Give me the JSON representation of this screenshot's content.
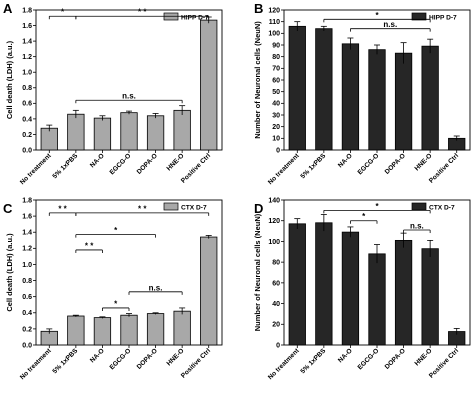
{
  "chart_data": [
    {
      "panel": "A",
      "type": "bar",
      "ylabel": "Cell death (LDH) (a.u.)",
      "legend": "HIPP D-7",
      "bar_color": "#a8a8a8",
      "ylim": [
        0,
        1.8
      ],
      "yticks": [
        "0.0",
        "0.2",
        "0.4",
        "0.6",
        "0.8",
        "1.0",
        "1.2",
        "1.4",
        "1.6",
        "1.8"
      ],
      "categories": [
        "No treatment",
        "5% 1xPBS",
        "NA-O",
        "EGCG-O",
        "DOPA-O",
        "HNE-O",
        "Positive Ctrl"
      ],
      "values": [
        0.28,
        0.46,
        0.41,
        0.48,
        0.44,
        0.51,
        1.67
      ],
      "errors": [
        0.04,
        0.05,
        0.03,
        0.02,
        0.03,
        0.06,
        0.04
      ],
      "annotations": [
        {
          "text": "*",
          "from": 0,
          "to": 1,
          "y": 1.72
        },
        {
          "text": "* *",
          "from": 1,
          "to": 6,
          "y": 1.72
        },
        {
          "text": "n.s.",
          "from": 1,
          "to": 5,
          "y": 0.64
        }
      ]
    },
    {
      "panel": "B",
      "type": "bar",
      "ylabel": "Number of Neuronal cells (NeuN)",
      "legend": "HIPP D-7",
      "bar_color": "#262626",
      "ylim": [
        0,
        120
      ],
      "yticks": [
        "0",
        "10",
        "20",
        "30",
        "40",
        "50",
        "60",
        "70",
        "80",
        "90",
        "100",
        "110",
        "120"
      ],
      "categories": [
        "No treatment",
        "5% 1xPBS",
        "NA-O",
        "EGCG-O",
        "DOPA-O",
        "HNE-O",
        "Positive Ctrl"
      ],
      "values": [
        106,
        104,
        91,
        86,
        83,
        89,
        10
      ],
      "errors": [
        4,
        2,
        5,
        4,
        9,
        6,
        2
      ],
      "annotations": [
        {
          "text": "*",
          "from": 1,
          "to": 5,
          "y": 112
        },
        {
          "text": "n.s.",
          "from": 2,
          "to": 5,
          "y": 104
        }
      ]
    },
    {
      "panel": "C",
      "type": "bar",
      "ylabel": "Cell death (LDH) (a.u.)",
      "legend": "CTX D-7",
      "bar_color": "#a8a8a8",
      "ylim": [
        0,
        1.8
      ],
      "yticks": [
        "0.0",
        "0.2",
        "0.4",
        "0.6",
        "0.8",
        "1.0",
        "1.2",
        "1.4",
        "1.6",
        "1.8"
      ],
      "categories": [
        "No treatment",
        "5% 1xPBS",
        "NA-O",
        "EGCG-O",
        "DOPA-O",
        "HNE-O",
        "Positive Ctrl"
      ],
      "values": [
        0.17,
        0.36,
        0.34,
        0.37,
        0.39,
        0.42,
        1.34
      ],
      "errors": [
        0.03,
        0.01,
        0.01,
        0.02,
        0.01,
        0.04,
        0.02
      ],
      "annotations": [
        {
          "text": "* *",
          "from": 0,
          "to": 1,
          "y": 1.64
        },
        {
          "text": "* *",
          "from": 1,
          "to": 6,
          "y": 1.64
        },
        {
          "text": "* *",
          "from": 1,
          "to": 2,
          "y": 1.18
        },
        {
          "text": "*",
          "from": 1,
          "to": 4,
          "y": 1.37
        },
        {
          "text": "n.s.",
          "from": 3,
          "to": 5,
          "y": 0.66
        },
        {
          "text": "*",
          "from": 2,
          "to": 3,
          "y": 0.46
        }
      ]
    },
    {
      "panel": "D",
      "type": "bar",
      "ylabel": "Number of Neuronal cells (NeuN)",
      "legend": "CTX D-7",
      "bar_color": "#262626",
      "ylim": [
        0,
        140
      ],
      "yticks": [
        "0",
        "20",
        "40",
        "60",
        "80",
        "100",
        "120",
        "140"
      ],
      "categories": [
        "No treatment",
        "5% 1xPBS",
        "NA-O",
        "EGCG-O",
        "DOPA-O",
        "HNE-O",
        "Positive Ctrl"
      ],
      "values": [
        117,
        118,
        109,
        88,
        101,
        93,
        13
      ],
      "errors": [
        5,
        8,
        5,
        9,
        7,
        8,
        3
      ],
      "annotations": [
        {
          "text": "*",
          "from": 1,
          "to": 5,
          "y": 130
        },
        {
          "text": "*",
          "from": 2,
          "to": 3,
          "y": 120
        },
        {
          "text": "n.s.",
          "from": 4,
          "to": 5,
          "y": 111
        }
      ]
    }
  ]
}
